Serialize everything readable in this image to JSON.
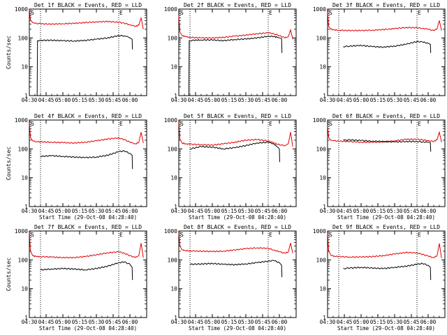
{
  "chart_data": {
    "type": "line",
    "layout": "3x3 grid",
    "x_start_time": "Start Time (29-Oct-08 04:28:40)",
    "y_label": "Counts/sec",
    "y_scale": "log",
    "ylim": [
      1,
      1000
    ],
    "y_tick_labels": [
      "1",
      "10",
      "100",
      "1000"
    ],
    "marker_start_label": "S",
    "marker_end_label": "E",
    "marker_start_time": "04:40",
    "marker_end_time": "05:50",
    "series_names": [
      "Events (black)",
      "LLD (red)"
    ],
    "colors": {
      "events": "#000000",
      "lld": "#e00000",
      "axes": "#000000"
    },
    "panels": [
      {
        "title": "Det 1f BLACK = Events, RED = LLD",
        "x_ticks": [
          "04:30",
          "04:45",
          "05:00",
          "05:15",
          "05:30",
          "05:45",
          "06:00"
        ],
        "x_range_minutes": [
          270,
          375
        ],
        "show_xlabel": false,
        "show_ylabel": true,
        "series": [
          {
            "name": "LLD",
            "color": "#e00000",
            "x": [
              270,
              271,
              273,
              275,
              280,
              290,
              300,
              310,
              320,
              330,
              340,
              350,
              355,
              360,
              365,
              368,
              370,
              372
            ],
            "y": [
              950,
              420,
              340,
              320,
              310,
              300,
              310,
              320,
              340,
              360,
              370,
              350,
              320,
              290,
              250,
              280,
              500,
              200
            ]
          },
          {
            "name": "Events",
            "color": "#000000",
            "x": [
              277,
              277.3,
              280,
              290,
              300,
              310,
              320,
              330,
              340,
              350,
              355,
              358,
              360,
              362,
              362.3
            ],
            "y": [
              1,
              80,
              82,
              83,
              80,
              78,
              82,
              90,
              100,
              120,
              118,
              110,
              100,
              90,
              40
            ]
          }
        ]
      },
      {
        "title": "Det 2f BLACK = Events, RED = LLD",
        "x_ticks": [
          "04:30",
          "04:45",
          "05:00",
          "05:15",
          "05:30",
          "05:45",
          "06:00"
        ],
        "x_range_minutes": [
          270,
          375
        ],
        "show_xlabel": false,
        "show_ylabel": false,
        "series": [
          {
            "name": "LLD",
            "color": "#e00000",
            "x": [
              270,
              271,
              273,
              276,
              280,
              290,
              300,
              310,
              320,
              330,
              340,
              350,
              355,
              360,
              365,
              368,
              370,
              372
            ],
            "y": [
              600,
              160,
              120,
              110,
              105,
              100,
              100,
              105,
              115,
              125,
              140,
              150,
              140,
              120,
              100,
              110,
              190,
              90
            ]
          },
          {
            "name": "Events",
            "color": "#000000",
            "x": [
              279,
              279.3,
              282,
              290,
              300,
              310,
              320,
              330,
              340,
              350,
              355,
              358,
              360,
              362,
              362.3
            ],
            "y": [
              1,
              80,
              82,
              85,
              85,
              80,
              88,
              92,
              100,
              115,
              112,
              105,
              100,
              95,
              30
            ]
          }
        ]
      },
      {
        "title": "Det 3f BLACK = Events, RED = LLD",
        "x_ticks": [
          "04:30",
          "04:45",
          "05:00",
          "05:15",
          "05:30",
          "05:45",
          "06:00"
        ],
        "x_range_minutes": [
          270,
          375
        ],
        "show_xlabel": false,
        "show_ylabel": false,
        "series": [
          {
            "name": "LLD",
            "color": "#e00000",
            "x": [
              270,
              271,
              273,
              276,
              280,
              290,
              300,
              310,
              320,
              330,
              340,
              350,
              355,
              360,
              365,
              368,
              370,
              372
            ],
            "y": [
              800,
              250,
              200,
              190,
              185,
              180,
              180,
              185,
              195,
              210,
              230,
              225,
              215,
              200,
              180,
              210,
              400,
              180
            ]
          },
          {
            "name": "Events",
            "color": "#000000",
            "x": [
              284,
              290,
              300,
              310,
              320,
              330,
              340,
              350,
              355,
              360,
              362,
              362.3
            ],
            "y": [
              50,
              52,
              55,
              50,
              48,
              52,
              60,
              75,
              72,
              65,
              60,
              30
            ]
          }
        ]
      },
      {
        "title": "Det 4f BLACK = Events, RED = LLD",
        "x_ticks": [
          "04:30",
          "04:45",
          "05:00",
          "05:15",
          "05:30",
          "05:45",
          "06:00"
        ],
        "x_range_minutes": [
          270,
          375
        ],
        "show_xlabel": true,
        "show_ylabel": true,
        "series": [
          {
            "name": "LLD",
            "color": "#e00000",
            "x": [
              270,
              271,
              273,
              276,
              280,
              290,
              300,
              310,
              320,
              330,
              340,
              350,
              355,
              360,
              365,
              368,
              370,
              372
            ],
            "y": [
              800,
              250,
              190,
              180,
              175,
              170,
              165,
              160,
              170,
              190,
              220,
              240,
              210,
              170,
              150,
              170,
              380,
              160
            ]
          },
          {
            "name": "Events",
            "color": "#000000",
            "x": [
              280,
              290,
              300,
              310,
              320,
              330,
              340,
              350,
              355,
              360,
              362,
              362.3
            ],
            "y": [
              55,
              58,
              55,
              52,
              50,
              52,
              60,
              80,
              85,
              70,
              60,
              20
            ]
          }
        ]
      },
      {
        "title": "Det 5f BLACK = Events, RED = LLD",
        "x_ticks": [
          "04:30",
          "04:45",
          "05:00",
          "05:15",
          "05:30",
          "05:45",
          "06:00"
        ],
        "x_range_minutes": [
          270,
          375
        ],
        "show_xlabel": true,
        "show_ylabel": false,
        "series": [
          {
            "name": "LLD",
            "color": "#e00000",
            "x": [
              270,
              271,
              273,
              276,
              280,
              290,
              300,
              310,
              320,
              330,
              340,
              350,
              355,
              360,
              365,
              368,
              370,
              372
            ],
            "y": [
              850,
              220,
              160,
              150,
              145,
              140,
              135,
              150,
              170,
              200,
              210,
              190,
              160,
              140,
              130,
              150,
              380,
              120
            ]
          },
          {
            "name": "Events",
            "color": "#000000",
            "x": [
              280,
              285,
              290,
              300,
              310,
              320,
              330,
              340,
              350,
              355,
              358,
              360,
              360.3
            ],
            "y": [
              100,
              110,
              120,
              115,
              100,
              110,
              130,
              160,
              170,
              150,
              120,
              100,
              35
            ]
          }
        ]
      },
      {
        "title": "Det 6f BLACK = Events, RED = LLD",
        "x_ticks": [
          "04:30",
          "04:45",
          "05:00",
          "05:15",
          "05:30",
          "05:45",
          "06:00"
        ],
        "x_range_minutes": [
          270,
          375
        ],
        "show_xlabel": true,
        "show_ylabel": false,
        "series": [
          {
            "name": "LLD",
            "color": "#e00000",
            "x": [
              270,
              271,
              273,
              276,
              280,
              290,
              300,
              310,
              320,
              330,
              340,
              350,
              355,
              360,
              365,
              368,
              370,
              372
            ],
            "y": [
              650,
              250,
              200,
              190,
              185,
              180,
              170,
              170,
              175,
              190,
              215,
              215,
              205,
              195,
              180,
              210,
              380,
              170
            ]
          },
          {
            "name": "Events",
            "color": "#000000",
            "x": [
              284,
              290,
              300,
              310,
              320,
              330,
              340,
              350,
              355,
              360,
              362,
              362.3
            ],
            "y": [
              200,
              205,
              195,
              185,
              180,
              175,
              180,
              180,
              175,
              170,
              165,
              80
            ]
          }
        ]
      },
      {
        "title": "Det 7f BLACK = Events, RED = LLD",
        "x_ticks": [
          "04:30",
          "04:45",
          "05:00",
          "05:15",
          "05:30",
          "05:45",
          "06:00"
        ],
        "x_range_minutes": [
          270,
          375
        ],
        "show_xlabel": true,
        "show_ylabel": true,
        "series": [
          {
            "name": "LLD",
            "color": "#e00000",
            "x": [
              270,
              271,
              273,
              276,
              280,
              290,
              300,
              310,
              320,
              330,
              340,
              350,
              355,
              360,
              365,
              368,
              370,
              372
            ],
            "y": [
              900,
              200,
              140,
              130,
              130,
              125,
              120,
              120,
              130,
              150,
              175,
              190,
              170,
              140,
              120,
              140,
              380,
              120
            ]
          },
          {
            "name": "Events",
            "color": "#000000",
            "x": [
              280,
              290,
              300,
              310,
              320,
              330,
              340,
              350,
              355,
              360,
              362,
              362.3
            ],
            "y": [
              45,
              48,
              50,
              48,
              45,
              50,
              60,
              80,
              85,
              70,
              55,
              20
            ]
          }
        ]
      },
      {
        "title": "Det 8f BLACK = Events, RED = LLD",
        "x_ticks": [
          "04:30",
          "04:45",
          "05:00",
          "05:15",
          "05:30",
          "05:45",
          "06:00"
        ],
        "x_range_minutes": [
          270,
          375
        ],
        "show_xlabel": true,
        "show_ylabel": false,
        "series": [
          {
            "name": "LLD",
            "color": "#e00000",
            "x": [
              270,
              271,
              273,
              276,
              280,
              290,
              300,
              310,
              320,
              330,
              340,
              350,
              355,
              360,
              365,
              368,
              370,
              372
            ],
            "y": [
              900,
              300,
              220,
              210,
              205,
              200,
              195,
              200,
              220,
              245,
              260,
              250,
              220,
              190,
              170,
              190,
              380,
              170
            ]
          },
          {
            "name": "Events",
            "color": "#000000",
            "x": [
              280,
              290,
              300,
              310,
              320,
              330,
              340,
              350,
              355,
              360,
              362,
              362.3
            ],
            "y": [
              70,
              72,
              75,
              70,
              68,
              72,
              80,
              90,
              95,
              80,
              65,
              25
            ]
          }
        ]
      },
      {
        "title": "Det 9f BLACK = Events, RED = LLD",
        "x_ticks": [
          "04:30",
          "04:45",
          "05:00",
          "05:15",
          "05:30",
          "05:45",
          "06:00"
        ],
        "x_range_minutes": [
          270,
          375
        ],
        "show_xlabel": true,
        "show_ylabel": false,
        "series": [
          {
            "name": "LLD",
            "color": "#e00000",
            "x": [
              270,
              271,
              273,
              276,
              280,
              290,
              300,
              310,
              320,
              330,
              340,
              350,
              355,
              360,
              365,
              368,
              370,
              372
            ],
            "y": [
              850,
              200,
              145,
              135,
              130,
              125,
              125,
              130,
              140,
              160,
              180,
              175,
              155,
              135,
              120,
              140,
              370,
              115
            ]
          },
          {
            "name": "Events",
            "color": "#000000",
            "x": [
              284,
              290,
              300,
              310,
              320,
              330,
              340,
              350,
              355,
              360,
              362,
              362.3
            ],
            "y": [
              50,
              52,
              55,
              52,
              50,
              55,
              60,
              70,
              75,
              65,
              55,
              20
            ]
          }
        ]
      }
    ]
  }
}
